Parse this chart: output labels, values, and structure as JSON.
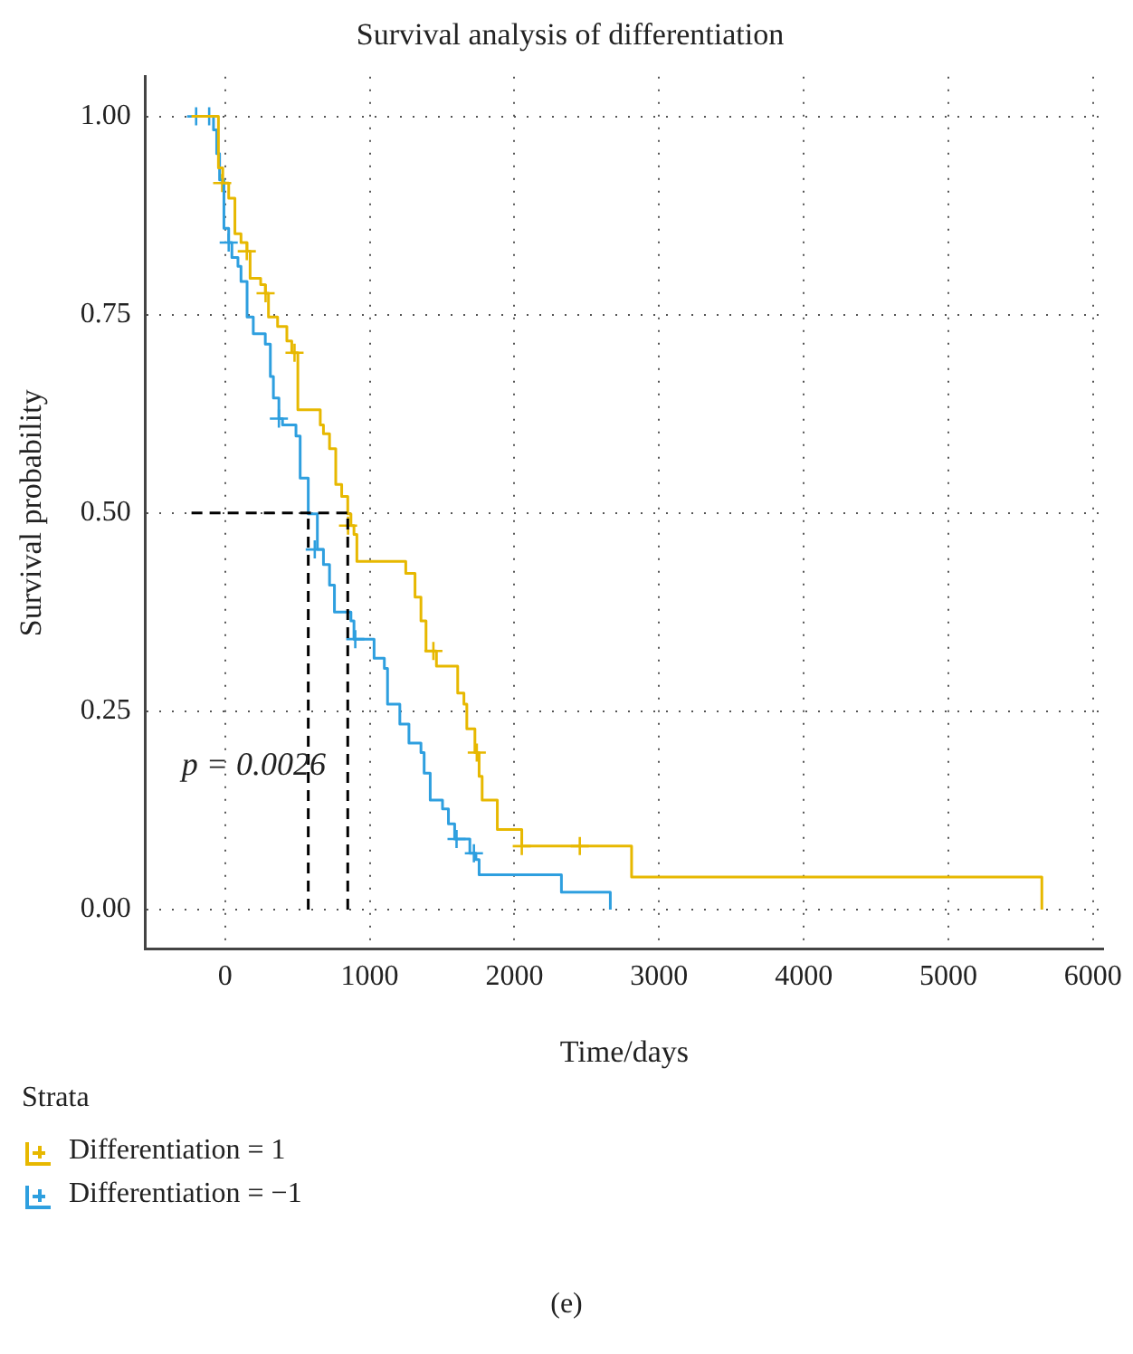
{
  "chart_data": {
    "type": "step",
    "title": "Survival analysis of differentiation",
    "xlabel": "Time/days",
    "ylabel": "Survival probability",
    "legend_title": "Strata",
    "legend": "bottom",
    "grid": true,
    "xlim": [
      -550,
      6070
    ],
    "xticks": [
      0,
      1000,
      2000,
      3000,
      4000,
      5000,
      6000
    ],
    "ylim": [
      -0.05,
      1.05
    ],
    "yticks": [
      {
        "value": 0,
        "label": "0.00"
      },
      {
        "value": 0.25,
        "label": "0.25"
      },
      {
        "value": 0.5,
        "label": "0.50"
      },
      {
        "value": 0.75,
        "label": "0.75"
      },
      {
        "value": 1,
        "label": "1.00"
      }
    ],
    "ref_lines": [
      {
        "axis": "y",
        "value": 0.5,
        "color": "#000000",
        "line_style": "dashed"
      },
      {
        "axis": "x",
        "value": 575,
        "color": "#000000",
        "line_style": "dashed"
      },
      {
        "axis": "x",
        "value": 848,
        "color": "#000000",
        "line_style": "dashed"
      }
    ],
    "annotations": [
      "p = 0.0026",
      "(e)"
    ],
    "series": [
      {
        "name": "Differentiation = 1",
        "color": "#e7b800",
        "marker": "none",
        "x": [
          -232,
          -46,
          -16,
          25,
          68,
          110,
          152,
          173,
          246,
          278,
          300,
          363,
          427,
          461,
          503,
          658,
          680,
          722,
          765,
          806,
          848,
          870,
          891,
          911,
          1249,
          1313,
          1354,
          1389,
          1461,
          1608,
          1651,
          1671,
          1727,
          1756,
          1777,
          1882,
          2051,
          2810,
          5646
        ],
        "values": [
          1,
          0.935,
          0.916,
          0.897,
          0.852,
          0.841,
          0.83,
          0.796,
          0.788,
          0.777,
          0.747,
          0.735,
          0.717,
          0.702,
          0.63,
          0.611,
          0.6,
          0.581,
          0.536,
          0.521,
          0.499,
          0.484,
          0.473,
          0.439,
          0.424,
          0.394,
          0.364,
          0.326,
          0.307,
          0.273,
          0.259,
          0.228,
          0.198,
          0.168,
          0.138,
          0.101,
          0.08,
          0.041,
          0
        ]
      },
      {
        "name": "Differentiation = −1",
        "color": "#2e9fdf",
        "marker": "none",
        "x": [
          -232,
          -80,
          -58,
          -38,
          -8,
          25,
          47,
          89,
          110,
          152,
          195,
          278,
          313,
          334,
          372,
          397,
          490,
          519,
          575,
          638,
          680,
          722,
          756,
          870,
          891,
          1030,
          1101,
          1123,
          1208,
          1271,
          1354,
          1376,
          1418,
          1503,
          1544,
          1587,
          1692,
          1734,
          1756,
          2325,
          2663
        ],
        "values": [
          1,
          0.983,
          0.953,
          0.92,
          0.859,
          0.841,
          0.822,
          0.811,
          0.792,
          0.747,
          0.726,
          0.713,
          0.672,
          0.645,
          0.619,
          0.611,
          0.597,
          0.544,
          0.499,
          0.454,
          0.435,
          0.409,
          0.375,
          0.364,
          0.341,
          0.317,
          0.304,
          0.259,
          0.234,
          0.21,
          0.198,
          0.172,
          0.138,
          0.127,
          0.108,
          0.089,
          0.071,
          0.063,
          0.044,
          0.022,
          0
        ]
      },
      {
        "type": "scatter",
        "color": "#e7b800",
        "marker": "cross",
        "x": [
          -20,
          150,
          280,
          480,
          850,
          1440,
          1740,
          2051,
          2452
        ],
        "values": [
          0.916,
          0.83,
          0.777,
          0.702,
          0.484,
          0.326,
          0.198,
          0.08,
          0.08
        ]
      },
      {
        "type": "scatter",
        "color": "#2e9fdf",
        "marker": "cross",
        "x": [
          -200,
          -110,
          25,
          372,
          620,
          900,
          1600,
          1720
        ],
        "values": [
          1,
          1,
          0.841,
          0.619,
          0.454,
          0.341,
          0.089,
          0.071
        ]
      }
    ]
  }
}
